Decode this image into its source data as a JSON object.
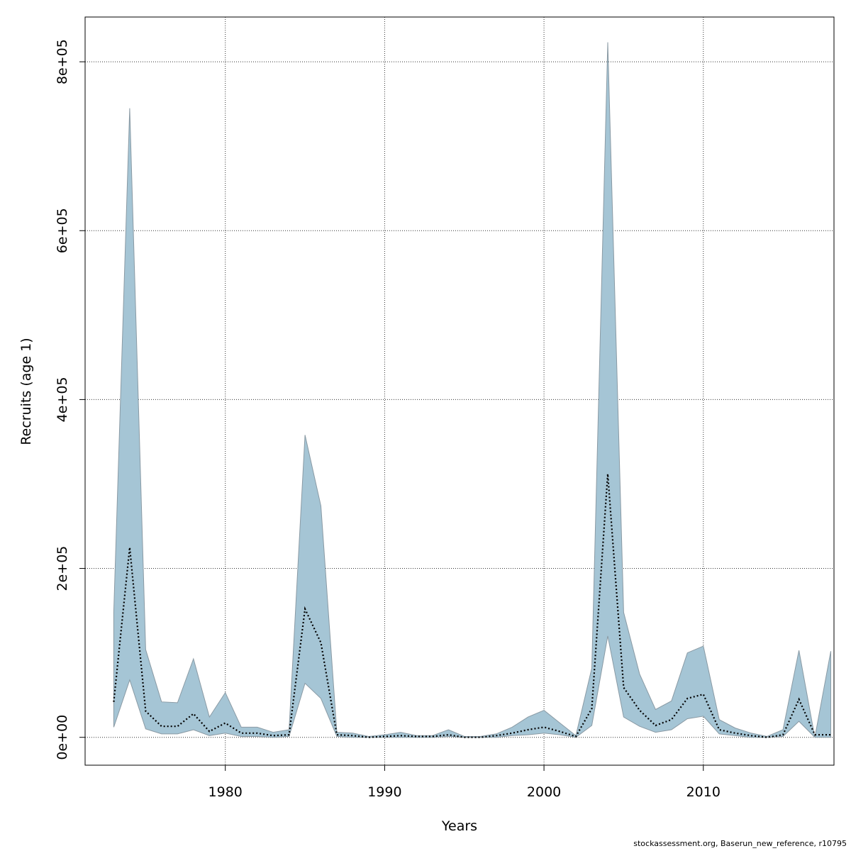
{
  "footer": "stockassessment.org, Baserun_new_reference, r10795",
  "colors": {
    "band_fill": "#a5c5d5",
    "band_stroke": "#8a9aa4",
    "line": "#000000",
    "grid": "#333333"
  },
  "chart_data": {
    "type": "area",
    "xlabel": "Years",
    "ylabel": "Recruits (age 1)",
    "xlim": [
      1971.2,
      2018.2
    ],
    "ylim": [
      -33000,
      853000
    ],
    "x_ticks": [
      1980,
      1990,
      2000,
      2010
    ],
    "x_tick_labels": [
      "1980",
      "1990",
      "2000",
      "2010"
    ],
    "y_ticks": [
      0,
      200000,
      400000,
      600000,
      800000
    ],
    "y_tick_labels": [
      "0e+00",
      "2e+05",
      "4e+05",
      "6e+05",
      "8e+05"
    ],
    "grid": true,
    "legend": "none",
    "series": [
      {
        "role": "estimate",
        "style": "dotted line",
        "x": [
          1973,
          1974,
          1975,
          1976,
          1977,
          1978,
          1979,
          1980,
          1981,
          1982,
          1983,
          1984,
          1985,
          1986,
          1987,
          1988,
          1989,
          1990,
          1991,
          1992,
          1993,
          1994,
          1995,
          1996,
          1997,
          1998,
          1999,
          2000,
          2001,
          2002,
          2003,
          2004,
          2005,
          2006,
          2007,
          2008,
          2009,
          2010,
          2011,
          2012,
          2013,
          2014,
          2015,
          2016,
          2017,
          2018
        ],
        "y": [
          42000,
          225000,
          31000,
          13000,
          13000,
          28000,
          7000,
          17000,
          5000,
          5000,
          2000,
          3000,
          152000,
          112000,
          3000,
          2000,
          0,
          1000,
          2000,
          1000,
          1000,
          3000,
          0,
          0,
          2000,
          5000,
          9000,
          12000,
          7000,
          1000,
          34000,
          312000,
          59000,
          32000,
          14000,
          21000,
          46000,
          51000,
          9000,
          5000,
          2000,
          0,
          3000,
          45000,
          3000,
          3000
        ]
      },
      {
        "role": "confidence_band",
        "style": "shaded area",
        "x": [
          1973,
          1974,
          1975,
          1976,
          1977,
          1978,
          1979,
          1980,
          1981,
          1982,
          1983,
          1984,
          1985,
          1986,
          1987,
          1988,
          1989,
          1990,
          1991,
          1992,
          1993,
          1994,
          1995,
          1996,
          1997,
          1998,
          1999,
          2000,
          2001,
          2002,
          2003,
          2004,
          2005,
          2006,
          2007,
          2008,
          2009,
          2010,
          2011,
          2012,
          2013,
          2014,
          2015,
          2016,
          2017,
          2018
        ],
        "lower": [
          12000,
          68000,
          10000,
          4000,
          4000,
          9000,
          2000,
          5000,
          1000,
          1000,
          0,
          1000,
          64000,
          46000,
          1000,
          0,
          0,
          0,
          0,
          0,
          0,
          1000,
          0,
          0,
          0,
          2000,
          3000,
          5000,
          3000,
          0,
          14000,
          120000,
          24000,
          13000,
          6000,
          9000,
          22000,
          25000,
          4000,
          2000,
          0,
          0,
          1000,
          19000,
          0,
          0
        ],
        "upper": [
          148000,
          745000,
          104000,
          42000,
          41000,
          93000,
          24000,
          53000,
          12000,
          12000,
          6000,
          9000,
          358000,
          274000,
          6000,
          5000,
          1000,
          3000,
          6000,
          2000,
          2000,
          9000,
          1000,
          1000,
          4000,
          12000,
          24000,
          32000,
          17000,
          2000,
          82000,
          823000,
          148000,
          75000,
          33000,
          43000,
          100000,
          108000,
          21000,
          11000,
          5000,
          1000,
          9000,
          103000,
          0,
          102000
        ]
      }
    ]
  }
}
